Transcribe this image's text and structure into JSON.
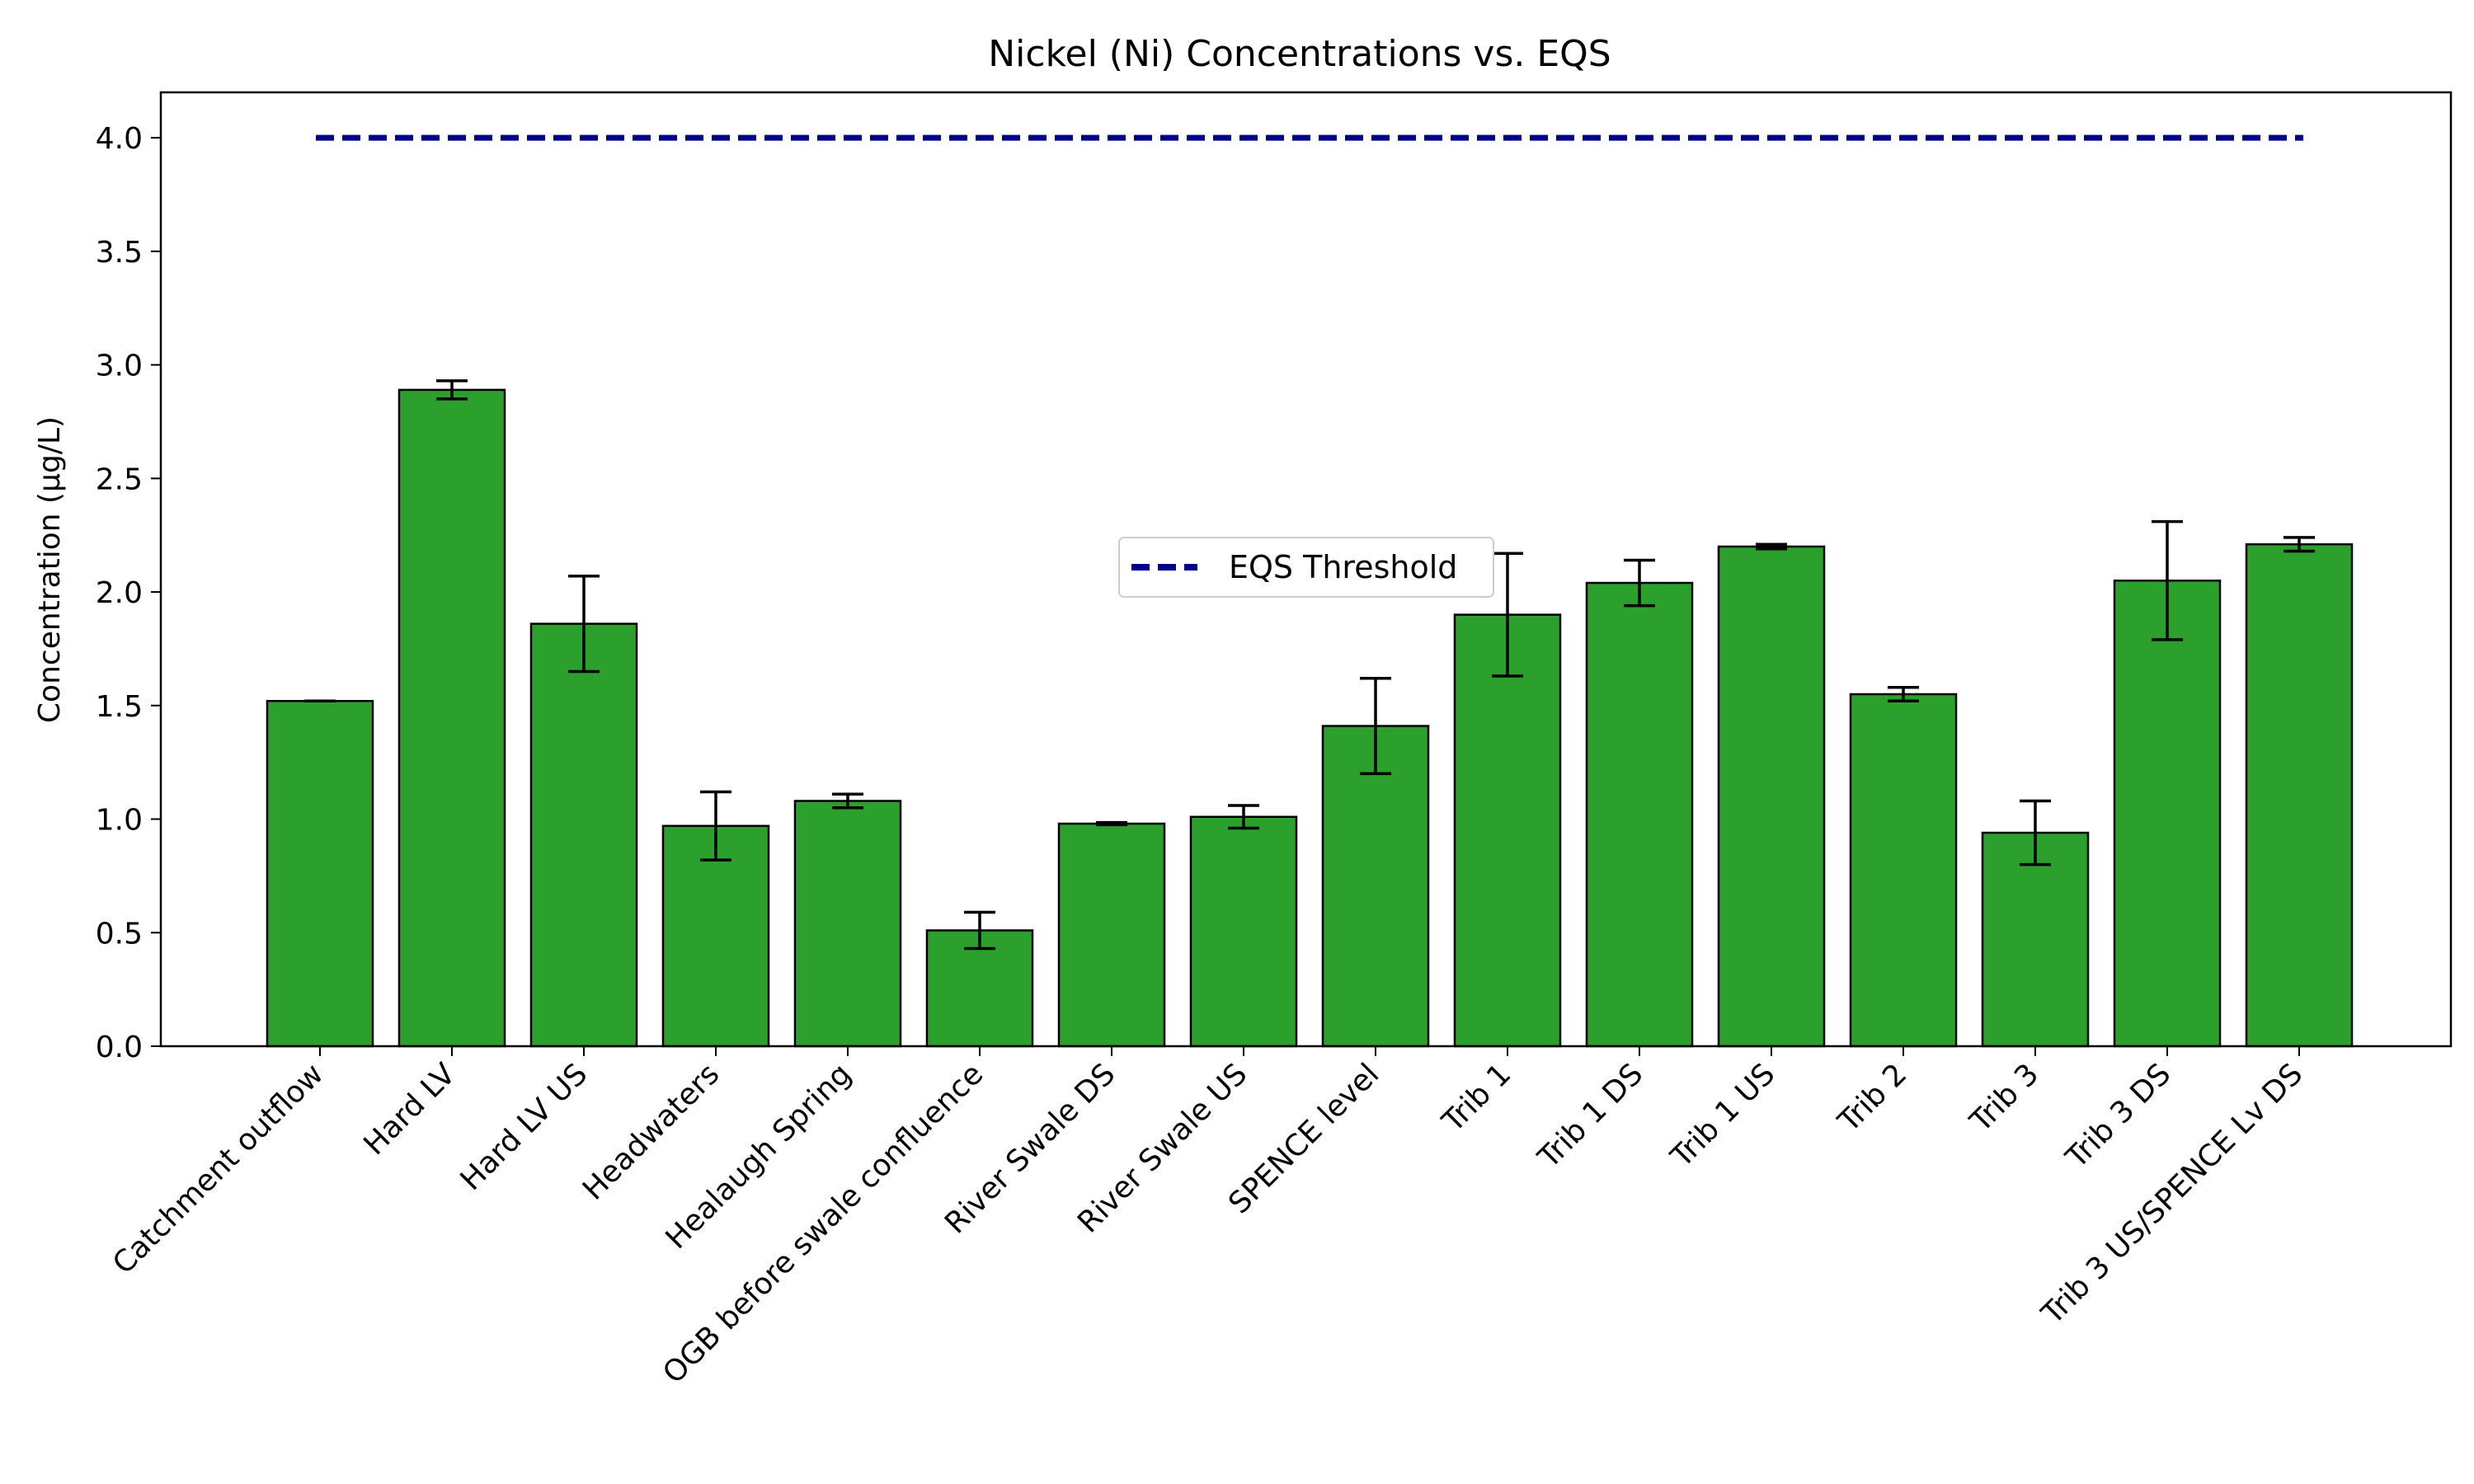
{
  "chart_data": {
    "type": "bar",
    "title": "Nickel (Ni) Concentrations vs. EQS",
    "xlabel": "",
    "ylabel": "Concentration (µg/L)",
    "ylim": [
      0,
      4.2
    ],
    "yticks": [
      0.0,
      0.5,
      1.0,
      1.5,
      2.0,
      2.5,
      3.0,
      3.5,
      4.0
    ],
    "grid": false,
    "legend_position": "center",
    "categories": [
      "Catchment outflow",
      "Hard LV",
      "Hard LV US",
      "Headwaters",
      "Healaugh Spring",
      "OGB before swale confluence",
      "River Swale DS",
      "River Swale US",
      "SPENCE level",
      "Trib 1",
      "Trib 1 DS",
      "Trib 1 US",
      "Trib 2",
      "Trib 3",
      "Trib 3 DS",
      "Trib 3 US/SPENCE Lv DS"
    ],
    "values": [
      1.52,
      2.89,
      1.86,
      0.97,
      1.08,
      0.51,
      0.98,
      1.01,
      1.41,
      1.9,
      2.04,
      2.2,
      1.55,
      0.94,
      2.05,
      2.21
    ],
    "errors": [
      0.0,
      0.04,
      0.21,
      0.15,
      0.03,
      0.08,
      0.005,
      0.05,
      0.21,
      0.27,
      0.1,
      0.01,
      0.03,
      0.14,
      0.26,
      0.03
    ],
    "bar_color": "#2ca02c",
    "threshold": {
      "name": "EQS Threshold",
      "value": 4.0,
      "color": "#00008b",
      "style": "dashed"
    }
  }
}
